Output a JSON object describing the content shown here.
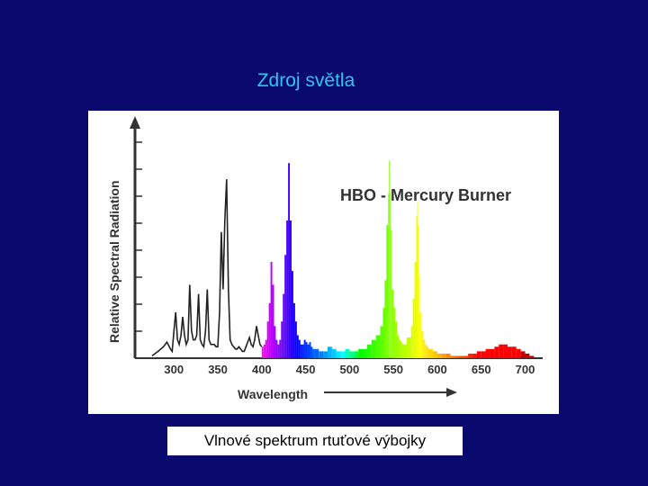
{
  "slide": {
    "title": "Zdroj světla",
    "caption": "Vlnové spektrum rtuťové výbojky"
  },
  "chart_data": {
    "type": "area",
    "title": "HBO - Mercury Burner",
    "xlabel": "Wavelength",
    "ylabel": "Relative Spectral Radiation",
    "xticks": [
      300,
      350,
      400,
      450,
      500,
      550,
      600,
      650,
      700
    ],
    "xlim": [
      270,
      720
    ],
    "ylim": [
      0,
      100
    ],
    "grid": false,
    "legend": "none",
    "spectrum_coloring": true,
    "series": [
      {
        "values_note": "",
        "x": [
          275,
          282,
          288,
          292,
          296,
          298,
          300,
          302,
          304,
          306,
          308,
          310,
          312,
          314,
          316,
          318,
          320,
          322,
          324,
          326,
          328,
          330,
          332,
          334,
          336,
          338,
          340,
          342,
          344,
          346,
          348,
          350,
          352,
          354,
          356,
          358,
          360,
          362,
          364,
          366,
          368,
          370,
          372,
          374,
          376,
          378,
          380,
          382,
          384,
          386,
          388,
          390,
          392,
          394,
          396,
          398,
          400,
          402,
          404,
          406,
          408,
          410,
          412,
          414,
          416,
          418,
          420,
          422,
          424,
          426,
          428,
          430,
          432,
          434,
          436,
          438,
          440,
          442,
          444,
          446,
          448,
          450,
          452,
          454,
          456,
          458,
          460,
          465,
          470,
          475,
          480,
          485,
          490,
          495,
          500,
          505,
          510,
          515,
          520,
          525,
          530,
          535,
          538,
          540,
          542,
          544,
          545,
          546,
          547,
          548,
          550,
          552,
          554,
          556,
          558,
          560,
          565,
          570,
          572,
          574,
          576,
          577,
          578,
          579,
          580,
          582,
          584,
          586,
          588,
          590,
          595,
          600,
          605,
          610,
          615,
          620,
          625,
          630,
          635,
          640,
          645,
          650,
          655,
          660,
          665,
          670,
          675,
          680,
          685,
          690,
          695,
          700,
          705,
          710
        ],
        "y": [
          1,
          3,
          5,
          7,
          4,
          3,
          12,
          20,
          8,
          6,
          10,
          18,
          10,
          6,
          8,
          32,
          12,
          8,
          8,
          10,
          28,
          8,
          6,
          5,
          12,
          30,
          8,
          6,
          6,
          6,
          5,
          5,
          20,
          55,
          30,
          60,
          78,
          30,
          8,
          6,
          5,
          4,
          4,
          5,
          4,
          3,
          3,
          5,
          7,
          9,
          6,
          5,
          8,
          14,
          10,
          6,
          5,
          6,
          8,
          16,
          24,
          42,
          32,
          14,
          8,
          6,
          8,
          16,
          28,
          45,
          60,
          85,
          60,
          38,
          24,
          16,
          10,
          8,
          6,
          6,
          8,
          7,
          6,
          7,
          5,
          4,
          4,
          3,
          3,
          5,
          4,
          3,
          3,
          4,
          3,
          3,
          4,
          4,
          6,
          8,
          10,
          14,
          22,
          34,
          58,
          72,
          86,
          72,
          56,
          30,
          22,
          16,
          10,
          8,
          7,
          6,
          9,
          14,
          26,
          42,
          62,
          68,
          58,
          36,
          20,
          12,
          8,
          6,
          5,
          4,
          3,
          2,
          2,
          2,
          1,
          1,
          1,
          1,
          2,
          2,
          3,
          3,
          4,
          4,
          5,
          6,
          6,
          5,
          5,
          4,
          3,
          2,
          1,
          1
        ]
      }
    ]
  }
}
